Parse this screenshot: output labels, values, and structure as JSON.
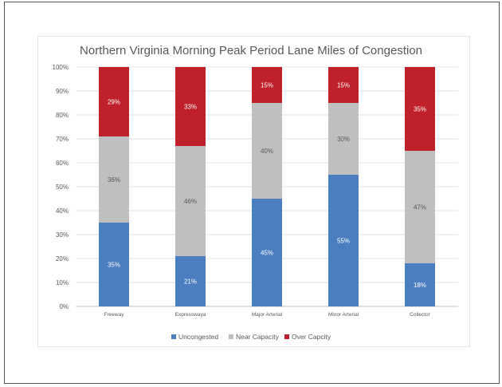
{
  "chart_data": {
    "type": "bar",
    "stacked": true,
    "percent": true,
    "title": "Northern Virginia Morning Peak Period Lane Miles of Congestion",
    "categories": [
      "Freeway",
      "Expresswaya",
      "Major Arterial",
      "Minor Arterial",
      "Collector"
    ],
    "series": [
      {
        "name": "Uncongested",
        "color": "#4a7ebf",
        "values": [
          35,
          21,
          45,
          55,
          18
        ]
      },
      {
        "name": "Near Capacity",
        "color": "#bfbfbf",
        "values": [
          36,
          46,
          40,
          30,
          47
        ]
      },
      {
        "name": "Over Capcity",
        "color": "#c0202a",
        "values": [
          29,
          33,
          15,
          15,
          35
        ]
      }
    ],
    "ylim": [
      0,
      100
    ],
    "yticks": [
      "0%",
      "10%",
      "20%",
      "30%",
      "40%",
      "50%",
      "60%",
      "70%",
      "80%",
      "90%",
      "100%"
    ],
    "grid": true,
    "legend": "bottom"
  }
}
